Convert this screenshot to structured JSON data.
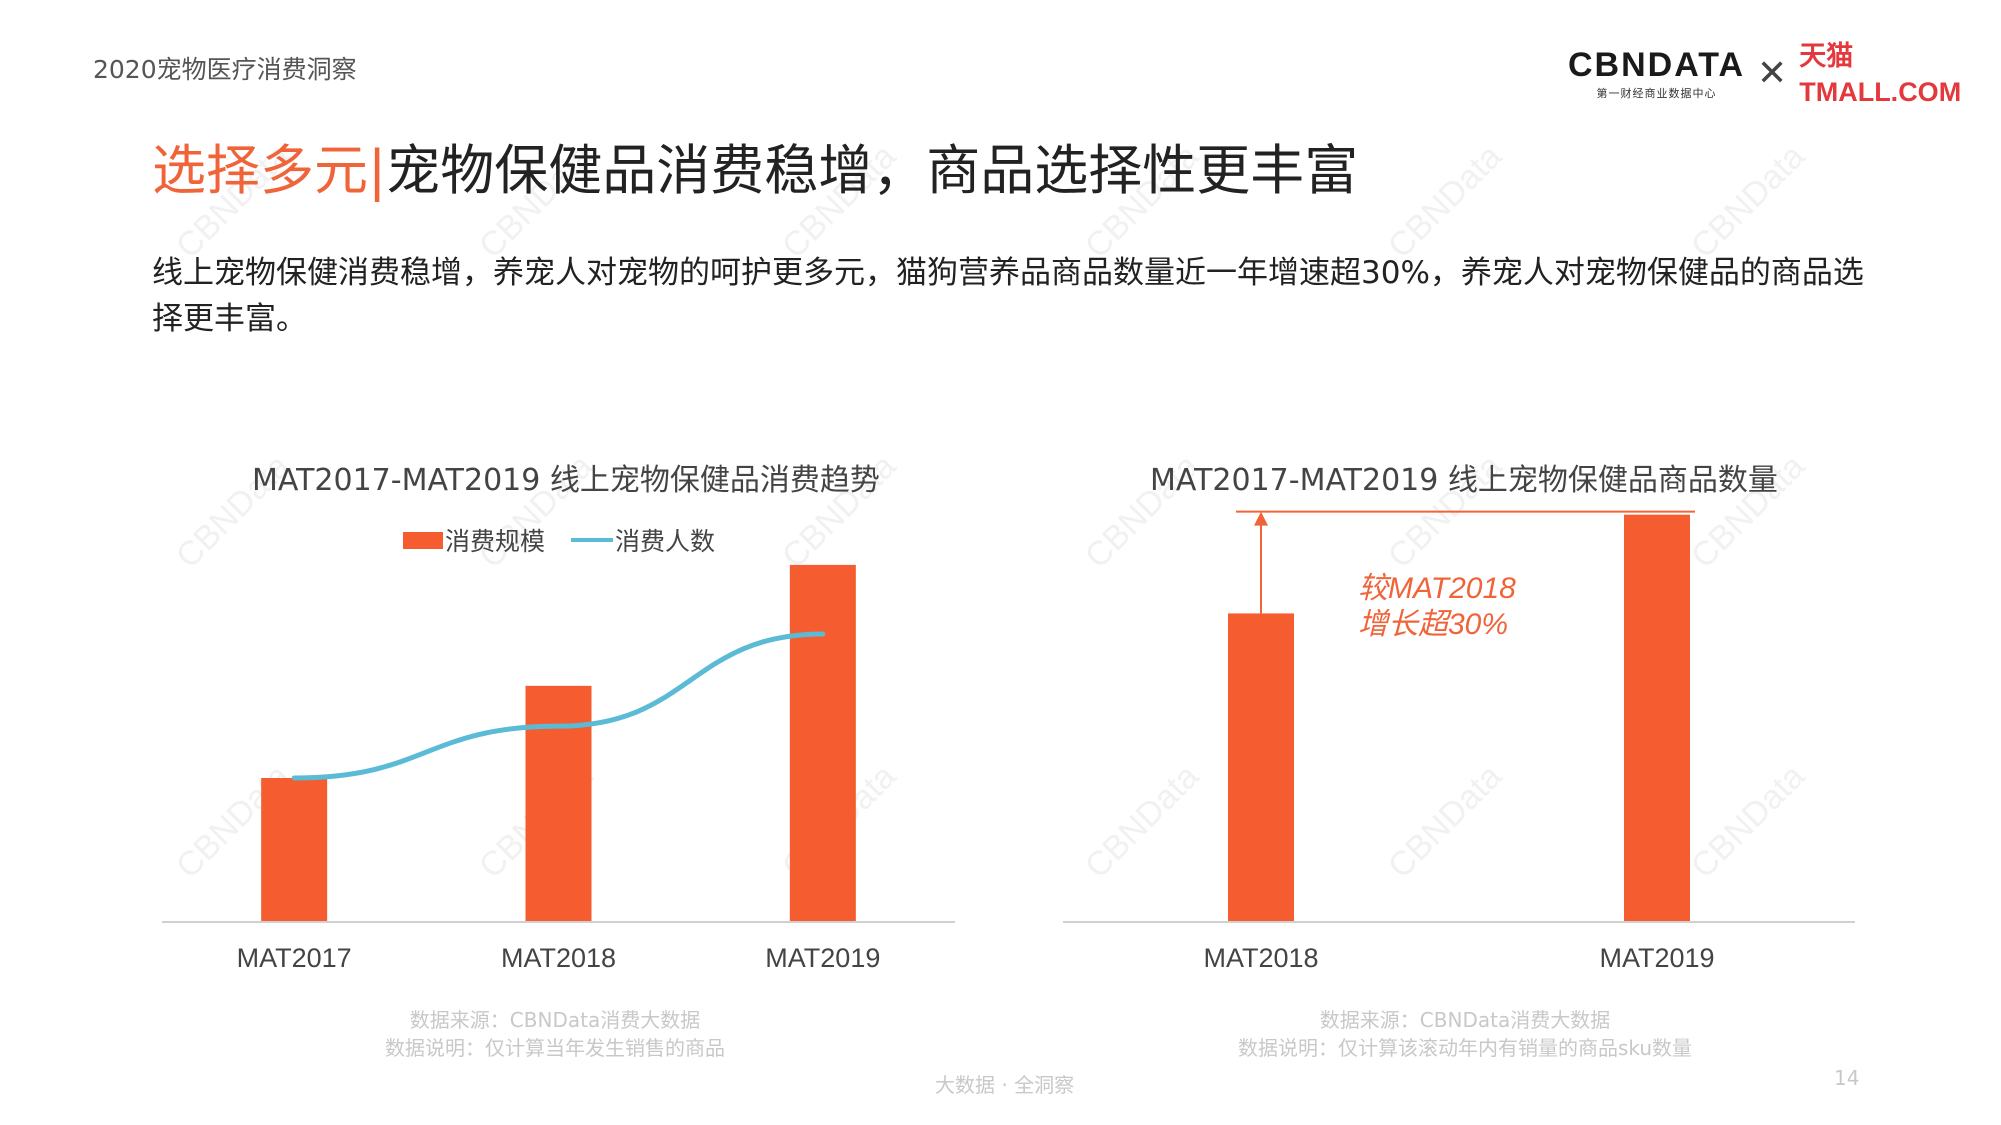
{
  "header": {
    "report_name": "2020宠物医疗消费洞察",
    "logo": {
      "cbn_text": "CBNDATA",
      "cbn_sub": "第一财经商业数据中心",
      "separator_icon": "times-icon",
      "tmall_text": "天猫TMALL.COM"
    }
  },
  "title": {
    "highlight": "选择多元",
    "separator": "|",
    "text": "宠物保健品消费稳增，商品选择性更丰富"
  },
  "description": "线上宠物保健消费稳增，养宠人对宠物的呵护更多元，猫狗营养品商品数量近一年增速超30%，养宠人对宠物保健品的商品选择更丰富。",
  "watermark": "CBNData",
  "chart_data": [
    {
      "type": "bar",
      "title": "MAT2017-MAT2019 线上宠物保健品消费趋势",
      "categories": [
        "MAT2017",
        "MAT2018",
        "MAT2019"
      ],
      "series": [
        {
          "name": "消费规模",
          "type": "bar",
          "color": "#f55c30",
          "values": [
            1.0,
            1.64,
            2.48
          ]
        },
        {
          "name": "消费人数",
          "type": "line",
          "color": "#5bbad5",
          "values": [
            1.0,
            1.36,
            2.0
          ]
        }
      ],
      "ylim": [
        0,
        3.0
      ],
      "grid": false,
      "legend": "top-center",
      "y_axis_shown": false,
      "note_lines": [
        "数据来源：CBNData消费大数据",
        "数据说明：仅计算当年发生销售的商品"
      ]
    },
    {
      "type": "bar",
      "title": "MAT2017-MAT2019 线上宠物保健品商品数量",
      "categories": [
        "MAT2018",
        "MAT2019"
      ],
      "series": [
        {
          "color": "#f55c30",
          "values": [
            1.0,
            1.32
          ]
        }
      ],
      "ylim": [
        0,
        1.4
      ],
      "grid": false,
      "y_axis_shown": false,
      "annotation": {
        "lines": [
          "较MAT2018",
          "增长超30%"
        ],
        "color": "#f0643a",
        "arrow": "up",
        "reference_line_at": 1.32
      },
      "note_lines": [
        "数据来源：CBNData消费大数据",
        "数据说明：仅计算该滚动年内有销量的商品sku数量"
      ]
    }
  ],
  "footer": {
    "slogan": "大数据 · 全洞察",
    "page": "14"
  }
}
